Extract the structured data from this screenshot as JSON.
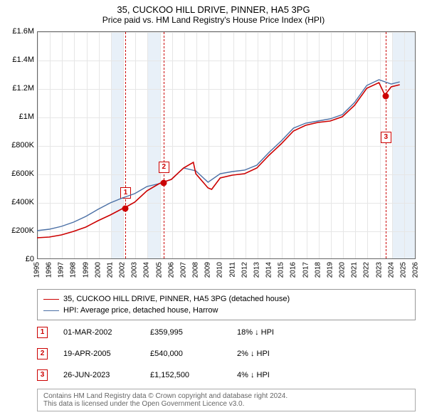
{
  "title": "35, CUCKOO HILL DRIVE, PINNER, HA5 3PG",
  "subtitle": "Price paid vs. HM Land Registry's House Price Index (HPI)",
  "chart": {
    "type": "line",
    "background_color": "#ffffff",
    "grid_color": "#e6e6e6",
    "shade_color": "#e8f0f8",
    "border_color": "#666666",
    "x_years": [
      1995,
      1996,
      1997,
      1998,
      1999,
      2000,
      2001,
      2002,
      2003,
      2004,
      2005,
      2006,
      2007,
      2008,
      2009,
      2010,
      2011,
      2012,
      2013,
      2014,
      2015,
      2016,
      2017,
      2018,
      2019,
      2020,
      2021,
      2022,
      2023,
      2024,
      2025,
      2026
    ],
    "x_range": [
      1995,
      2026
    ],
    "shaded_years": [
      2001,
      2004,
      2024,
      2025
    ],
    "y_ticks": [
      0,
      200000,
      400000,
      600000,
      800000,
      1000000,
      1200000,
      1400000,
      1600000
    ],
    "y_tick_labels": [
      "£0",
      "£200K",
      "£400K",
      "£600K",
      "£800K",
      "£1M",
      "£1.2M",
      "£1.4M",
      "£1.6M"
    ],
    "ylim": [
      0,
      1600000
    ],
    "label_fontsize": 11,
    "tick_fontsize": 10,
    "series": [
      {
        "name": "35, CUCKOO HILL DRIVE, PINNER, HA5 3PG (detached house)",
        "color": "#cc0000",
        "line_width": 1.6,
        "data_x": [
          1995,
          1996,
          1997,
          1998,
          1999,
          2000,
          2001,
          2002,
          2002.16,
          2003,
          2004,
          2005,
          2005.3,
          2006,
          2007,
          2007.8,
          2008,
          2009,
          2009.3,
          2010,
          2011,
          2012,
          2013,
          2014,
          2015,
          2016,
          2017,
          2018,
          2019,
          2020,
          2021,
          2022,
          2023,
          2023.48,
          2024,
          2024.7
        ],
        "data_y": [
          150000,
          155000,
          170000,
          195000,
          225000,
          270000,
          310000,
          355000,
          359995,
          400000,
          480000,
          530000,
          540000,
          560000,
          640000,
          680000,
          600000,
          500000,
          490000,
          570000,
          590000,
          600000,
          640000,
          730000,
          810000,
          900000,
          940000,
          960000,
          970000,
          1000000,
          1080000,
          1200000,
          1240000,
          1152500,
          1210000,
          1225000
        ]
      },
      {
        "name": "HPI: Average price, detached house, Harrow",
        "color": "#4a6fa5",
        "line_width": 1.4,
        "data_x": [
          1995,
          1996,
          1997,
          1998,
          1999,
          2000,
          2001,
          2002,
          2003,
          2004,
          2005,
          2006,
          2007,
          2008,
          2009,
          2010,
          2011,
          2012,
          2013,
          2014,
          2015,
          2016,
          2017,
          2018,
          2019,
          2020,
          2021,
          2022,
          2023,
          2024,
          2024.7
        ],
        "data_y": [
          200000,
          210000,
          230000,
          260000,
          300000,
          350000,
          395000,
          430000,
          460000,
          510000,
          530000,
          560000,
          640000,
          620000,
          540000,
          600000,
          615000,
          625000,
          660000,
          750000,
          830000,
          920000,
          955000,
          970000,
          985000,
          1015000,
          1100000,
          1220000,
          1260000,
          1230000,
          1245000
        ]
      }
    ],
    "markers": [
      {
        "n": "1",
        "x": 2002.16,
        "y": 359995,
        "box_offset": -30
      },
      {
        "n": "2",
        "x": 2005.3,
        "y": 540000,
        "box_offset": -30
      },
      {
        "n": "3",
        "x": 2023.48,
        "y": 1152500,
        "box_offset": 50
      }
    ]
  },
  "legend": {
    "items": [
      {
        "label": "35, CUCKOO HILL DRIVE, PINNER, HA5 3PG (detached house)",
        "color": "#cc0000"
      },
      {
        "label": "HPI: Average price, detached house, Harrow",
        "color": "#4a6fa5"
      }
    ]
  },
  "sales": [
    {
      "n": "1",
      "date": "01-MAR-2002",
      "price": "£359,995",
      "delta": "18% ↓ HPI"
    },
    {
      "n": "2",
      "date": "19-APR-2005",
      "price": "£540,000",
      "delta": "2% ↓ HPI"
    },
    {
      "n": "3",
      "date": "26-JUN-2023",
      "price": "£1,152,500",
      "delta": "4% ↓ HPI"
    }
  ],
  "footer": {
    "line1": "Contains HM Land Registry data © Crown copyright and database right 2024.",
    "line2": "This data is licensed under the Open Government Licence v3.0."
  }
}
